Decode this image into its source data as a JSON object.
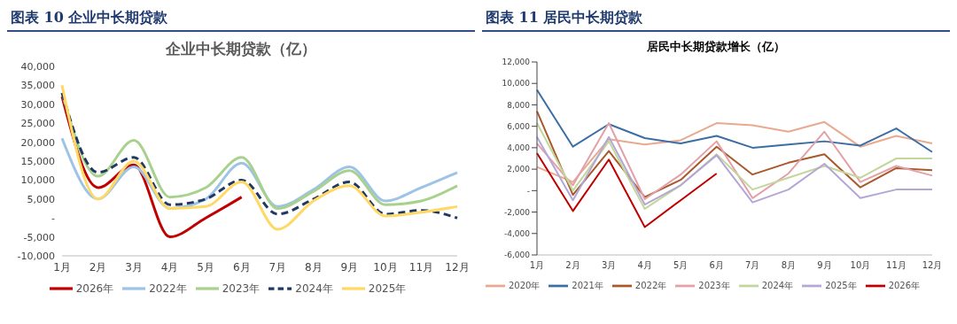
{
  "chart_data": [
    {
      "type": "line",
      "title": "图表 10 企业中长期贷款",
      "subtitle": "企业中长期贷款（亿）",
      "categories": [
        "1月",
        "2月",
        "3月",
        "4月",
        "5月",
        "6月",
        "7月",
        "8月",
        "9月",
        "10月",
        "11月",
        "12月"
      ],
      "series": [
        {
          "name": "2026年",
          "color": "#c00000",
          "values": [
            32000,
            8000,
            14000,
            -5000,
            0,
            5500,
            null,
            null,
            null,
            null,
            null,
            null
          ]
        },
        {
          "name": "2022年",
          "color": "#9dc3e6",
          "values": [
            21000,
            5000,
            13500,
            2500,
            5000,
            14500,
            3000,
            7500,
            13500,
            4500,
            8000,
            12000
          ]
        },
        {
          "name": "2023年",
          "color": "#a9d18e",
          "values": [
            33000,
            11000,
            20500,
            5500,
            8000,
            16000,
            2500,
            7000,
            12500,
            3500,
            4500,
            8500
          ]
        },
        {
          "name": "2024年",
          "color": "#1f3864",
          "line_style": "dashed",
          "values": [
            33000,
            12000,
            16000,
            3500,
            5000,
            10000,
            1000,
            5000,
            9500,
            1000,
            2000,
            0
          ]
        },
        {
          "name": "2025年",
          "color": "#ffd966",
          "values": [
            35000,
            5000,
            15000,
            2500,
            3000,
            9500,
            -3000,
            4500,
            8500,
            500,
            1500,
            3000
          ]
        }
      ],
      "ylim": [
        -10000,
        40000
      ],
      "yticks": [
        {
          "value": -10000,
          "label": "-10,000"
        },
        {
          "value": -5000,
          "label": "-5,000"
        },
        {
          "value": 0,
          "label": "-"
        },
        {
          "value": 5000,
          "label": "5,000"
        },
        {
          "value": 10000,
          "label": "10,000"
        },
        {
          "value": 15000,
          "label": "15,000"
        },
        {
          "value": 20000,
          "label": "20,000"
        },
        {
          "value": 25000,
          "label": "25,000"
        },
        {
          "value": 30000,
          "label": "30,000"
        },
        {
          "value": 35000,
          "label": "35,000"
        },
        {
          "value": 40000,
          "label": "40,000"
        }
      ],
      "grid": false,
      "legend": "bottom",
      "marker": "none"
    },
    {
      "type": "line",
      "title": "图表 11 居民中长期贷款",
      "subtitle": "居民中长期贷款增长（亿）",
      "categories": [
        "1月",
        "2月",
        "3月",
        "4月",
        "5月",
        "6月",
        "7月",
        "8月",
        "9月",
        "10月",
        "11月",
        "12月"
      ],
      "series": [
        {
          "name": "2020年",
          "color": "#e9a990",
          "values": [
            2200,
            800,
            4800,
            4300,
            4700,
            6300,
            6100,
            5500,
            6400,
            4100,
            5100,
            4400
          ]
        },
        {
          "name": "2021年",
          "color": "#3a6ea5",
          "values": [
            9400,
            4100,
            6200,
            4900,
            4400,
            5100,
            4000,
            4300,
            4600,
            4200,
            5800,
            3600
          ]
        },
        {
          "name": "2022年",
          "color": "#a9582a",
          "values": [
            7400,
            -400,
            3700,
            -600,
            1000,
            4100,
            1500,
            2600,
            3400,
            300,
            2100,
            1900
          ]
        },
        {
          "name": "2023年",
          "color": "#e3a0a8",
          "values": [
            4400,
            500,
            6300,
            -800,
            1500,
            4600,
            -700,
            1600,
            5500,
            800,
            2300,
            1400
          ]
        },
        {
          "name": "2024年",
          "color": "#c3d69b",
          "values": [
            6300,
            0,
            4600,
            -1700,
            500,
            3400,
            100,
            1200,
            2300,
            1200,
            3000,
            3000
          ]
        },
        {
          "name": "2025年",
          "color": "#b4a7d6",
          "values": [
            5000,
            -900,
            5000,
            -1300,
            500,
            3300,
            -1100,
            100,
            2500,
            -700,
            100,
            100
          ]
        },
        {
          "name": "2026年",
          "color": "#c00000",
          "values": [
            3500,
            -1900,
            2900,
            -3400,
            -900,
            1600,
            null,
            null,
            null,
            null,
            null,
            null
          ]
        }
      ],
      "ylim": [
        -6000,
        12000
      ],
      "yticks": [
        {
          "value": -6000,
          "label": "-6,000"
        },
        {
          "value": -4000,
          "label": "-4,000"
        },
        {
          "value": -2000,
          "label": "-2,000"
        },
        {
          "value": 0,
          "label": "-"
        },
        {
          "value": 2000,
          "label": "2,000"
        },
        {
          "value": 4000,
          "label": "4,000"
        },
        {
          "value": 6000,
          "label": "6,000"
        },
        {
          "value": 8000,
          "label": "8,000"
        },
        {
          "value": 10000,
          "label": "10,000"
        },
        {
          "value": 12000,
          "label": "12,000"
        }
      ],
      "grid": false,
      "legend": "bottom",
      "marker": "none"
    }
  ]
}
